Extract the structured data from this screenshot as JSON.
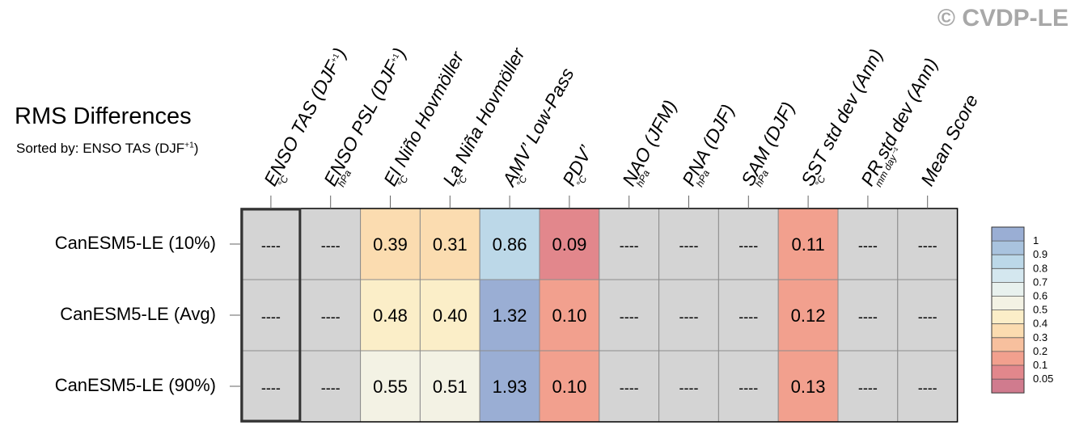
{
  "header": {
    "copyright": "© CVDP-LE",
    "title": "RMS Differences",
    "subtitle_prefix": "Sorted by: ENSO TAS (DJF",
    "subtitle_sup": "+1",
    "subtitle_suffix": ")"
  },
  "chart_data": {
    "type": "heatmap",
    "title": "RMS Differences",
    "columns": [
      {
        "name": "ENSO TAS (DJF",
        "sup": "+1",
        "tail": ")",
        "unit": "°C"
      },
      {
        "name": "ENSO PSL (DJF",
        "sup": "+1",
        "tail": ")",
        "unit": "hPa"
      },
      {
        "name": "El Niño Hovmöller",
        "sup": "",
        "tail": "",
        "unit": "°C"
      },
      {
        "name": "La Niña Hovmöller",
        "sup": "",
        "tail": "",
        "unit": "°C"
      },
      {
        "name": "AMV’ Low-Pass",
        "sup": "",
        "tail": "",
        "unit": "°C"
      },
      {
        "name": "PDV’",
        "sup": "",
        "tail": "",
        "unit": "°C"
      },
      {
        "name": "NAO (JFM)",
        "sup": "",
        "tail": "",
        "unit": "hPa"
      },
      {
        "name": "PNA (DJF)",
        "sup": "",
        "tail": "",
        "unit": "hPa"
      },
      {
        "name": "SAM (DJF)",
        "sup": "",
        "tail": "",
        "unit": "hPa"
      },
      {
        "name": "SST std dev (Ann)",
        "sup": "",
        "tail": "",
        "unit": "°C"
      },
      {
        "name": "PR std dev (Ann)",
        "sup": "",
        "tail": "",
        "unit": "mm day⁻¹"
      },
      {
        "name": "Mean Score",
        "sup": "",
        "tail": "",
        "unit": ""
      }
    ],
    "rows": [
      "CanESM5-LE (10%)",
      "CanESM5-LE (Avg)",
      "CanESM5-LE (90%)"
    ],
    "missing_label": "----",
    "values": [
      [
        null,
        null,
        0.39,
        0.31,
        0.86,
        0.09,
        null,
        null,
        null,
        0.11,
        null,
        null
      ],
      [
        null,
        null,
        0.48,
        0.4,
        1.32,
        0.1,
        null,
        null,
        null,
        0.12,
        null,
        null
      ],
      [
        null,
        null,
        0.55,
        0.51,
        1.93,
        0.1,
        null,
        null,
        null,
        0.13,
        null,
        null
      ]
    ],
    "labels": [
      [
        "----",
        "----",
        "0.39",
        "0.31",
        "0.86",
        "0.09",
        "----",
        "----",
        "----",
        "0.11",
        "----",
        "----"
      ],
      [
        "----",
        "----",
        "0.48",
        "0.40",
        "1.32",
        "0.10",
        "----",
        "----",
        "----",
        "0.12",
        "----",
        "----"
      ],
      [
        "----",
        "----",
        "0.55",
        "0.51",
        "1.93",
        "0.10",
        "----",
        "----",
        "----",
        "0.13",
        "----",
        "----"
      ]
    ],
    "highlighted_column": 0,
    "missing_color": "#d4d4d4",
    "colorbar": {
      "levels": [
        "1",
        "0.9",
        "0.8",
        "0.7",
        "0.6",
        "0.5",
        "0.4",
        "0.3",
        "0.2",
        "0.1",
        "0.05"
      ],
      "colors": [
        "#9aaed4",
        "#a9c3de",
        "#bcd8e8",
        "#d4e7ef",
        "#e8f1ee",
        "#f3f2e4",
        "#fbeec8",
        "#fbdcb0",
        "#f7c09e",
        "#f2a08e",
        "#e2878c",
        "#d07b8e"
      ]
    }
  }
}
